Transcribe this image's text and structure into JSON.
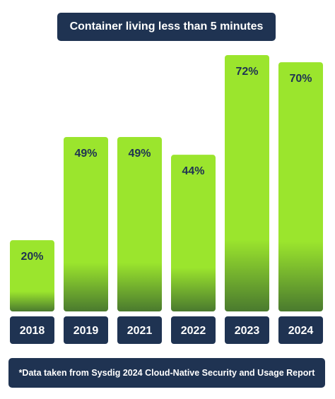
{
  "chart_data": {
    "type": "bar",
    "title": "Container living less than 5 minutes",
    "categories": [
      "2018",
      "2019",
      "2021",
      "2022",
      "2023",
      "2024"
    ],
    "values": [
      20,
      49,
      49,
      44,
      72,
      70
    ],
    "value_labels": [
      "20%",
      "49%",
      "49%",
      "44%",
      "72%",
      "70%"
    ],
    "unit": "%",
    "ylim": [
      0,
      72
    ],
    "grid": false,
    "bar_color": "#9be52d",
    "bar_fade_color": "#4a7a2e",
    "label_box_color": "#1f3352"
  },
  "footnote": "*Data taken from Sysdig 2024 Cloud-Native Security and Usage Report"
}
